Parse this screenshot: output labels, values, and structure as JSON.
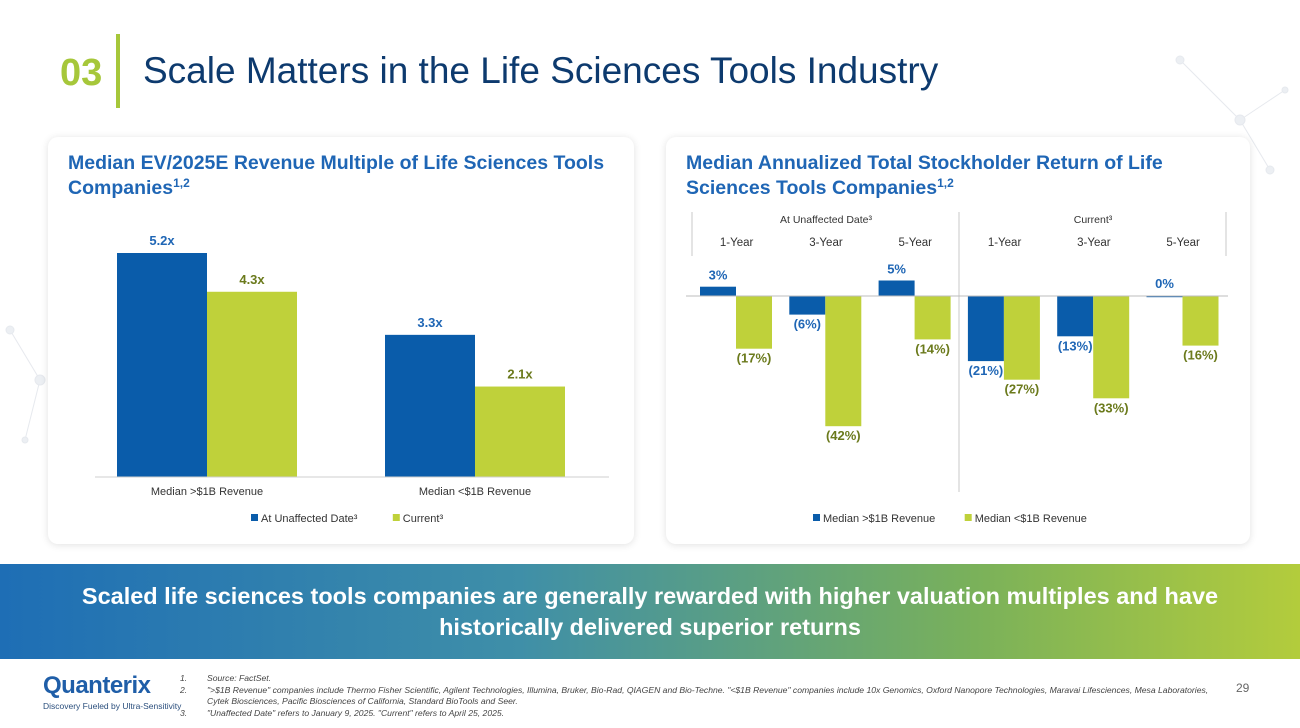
{
  "header": {
    "section_number": "03",
    "title": "Scale Matters in the Life Sciences Tools Industry"
  },
  "chart_data": [
    {
      "type": "bar",
      "title": "Median EV/2025E Revenue Multiple of Life Sciences Tools Companies",
      "title_superscript": "1,2",
      "categories": [
        "Median >$1B Revenue",
        "Median <$1B Revenue"
      ],
      "series": [
        {
          "name": "At Unaffected Date³",
          "color": "#0a5caa",
          "values": [
            5.2,
            3.3
          ],
          "labels": [
            "5.2x",
            "3.3x"
          ]
        },
        {
          "name": "Current³",
          "color": "#bfd13a",
          "values": [
            4.3,
            2.1
          ],
          "labels": [
            "4.3x",
            "2.1x"
          ]
        }
      ],
      "ylim": [
        0,
        5.2
      ],
      "legend": "bottom",
      "grid": false
    },
    {
      "type": "bar",
      "title": "Median Annualized Total Stockholder Return of Life Sciences Tools Companies",
      "title_superscript": "1,2",
      "groups": [
        "At Unaffected Date³",
        "Current³"
      ],
      "categories": [
        "1-Year",
        "3-Year",
        "5-Year",
        "1-Year",
        "3-Year",
        "5-Year"
      ],
      "series": [
        {
          "name": "Median >$1B Revenue",
          "color": "#0a5caa",
          "values": [
            3,
            -6,
            5,
            -21,
            -13,
            0
          ],
          "labels": [
            "3%",
            "(6%)",
            "5%",
            "(21%)",
            "(13%)",
            "0%"
          ]
        },
        {
          "name": "Median <$1B Revenue",
          "color": "#bfd13a",
          "values": [
            -17,
            -42,
            -14,
            -27,
            -33,
            -16
          ],
          "labels": [
            "(17%)",
            "(42%)",
            "(14%)",
            "(27%)",
            "(33%)",
            "(16%)"
          ]
        }
      ],
      "ylim": [
        -42,
        5
      ],
      "legend": "bottom",
      "grid": false
    }
  ],
  "banner": {
    "text": "Scaled life sciences tools companies are generally rewarded with higher valuation multiples and have historically delivered superior returns"
  },
  "logo": {
    "name": "Quanterix",
    "tagline": "Discovery Fueled by Ultra-Sensitivity"
  },
  "footnotes": [
    {
      "num": "1.",
      "text": "Source: FactSet."
    },
    {
      "num": "2.",
      "text": "\">$1B Revenue\" companies include Thermo Fisher Scientific, Agilent Technologies, Illumina, Bruker, Bio-Rad, QIAGEN and Bio-Techne. \"<$1B Revenue\" companies include 10x Genomics, Oxford Nanopore Technologies, Maravai Lifesciences, Mesa Laboratories, Cytek Biosciences, Pacific Biosciences of California, Standard BioTools and Seer."
    },
    {
      "num": "3.",
      "text": "\"Unaffected Date\" refers to January 9, 2025. \"Current\" refers to April 25, 2025."
    }
  ],
  "page_number": "29"
}
